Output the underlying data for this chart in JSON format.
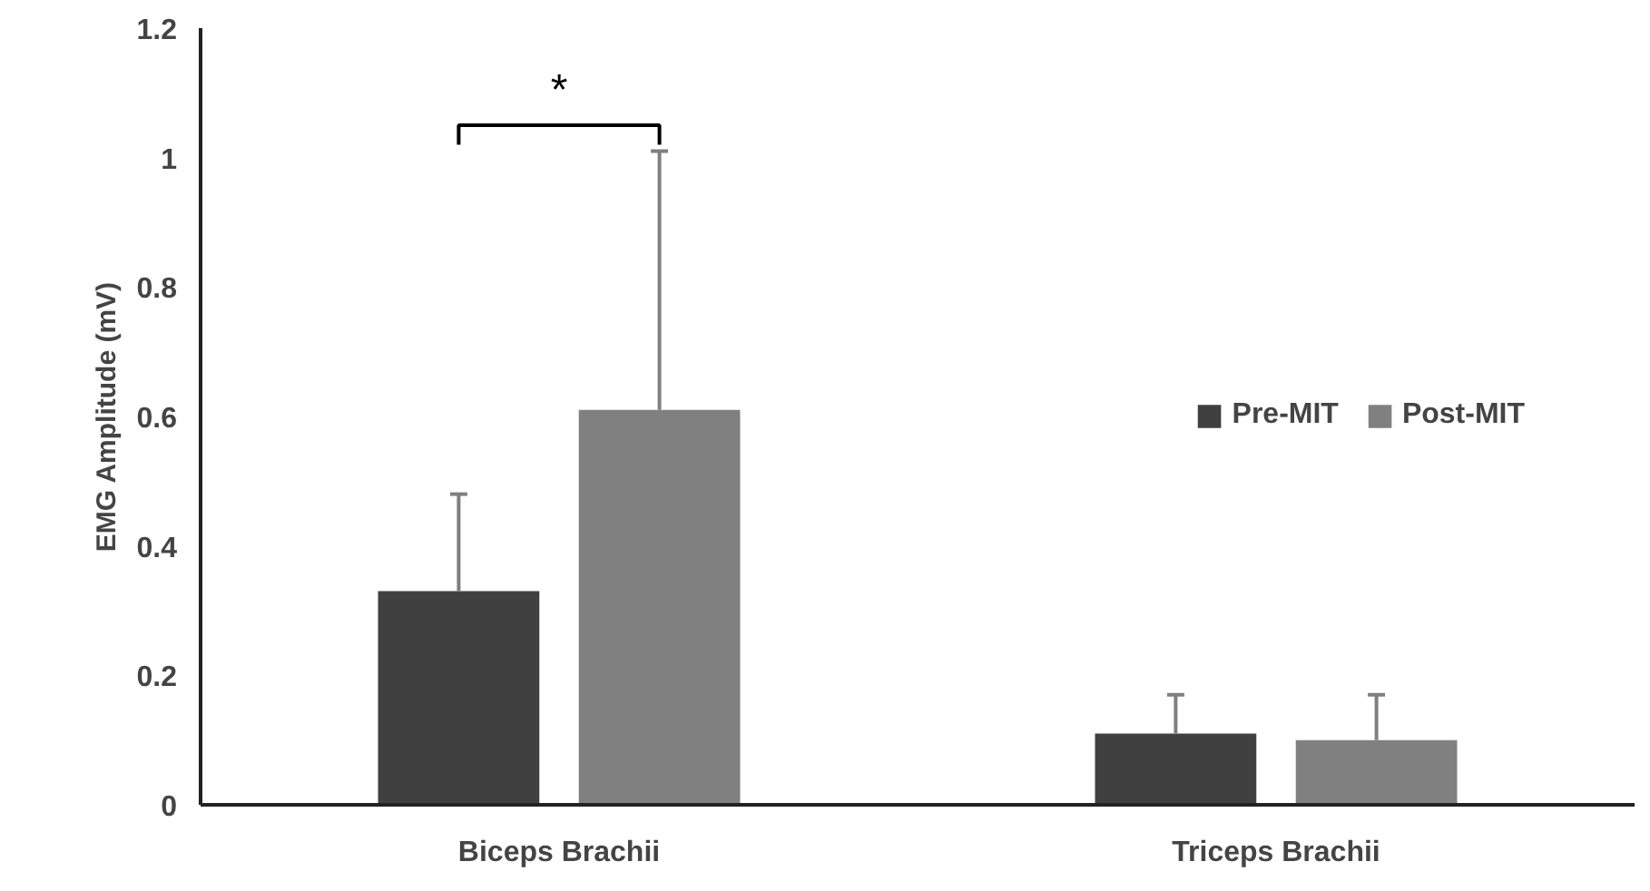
{
  "chart_data": {
    "type": "bar",
    "ylabel": "EMG Amplitude (mV)",
    "categories": [
      "Biceps Brachii",
      "Triceps Brachii"
    ],
    "series": [
      {
        "name": "Pre-MIT",
        "color": "#404040",
        "values": [
          0.33,
          0.11
        ],
        "errors": [
          [
            0.33,
            0.48
          ],
          [
            0.11,
            0.17
          ]
        ]
      },
      {
        "name": "Post-MIT",
        "color": "#808080",
        "values": [
          0.61,
          0.1
        ],
        "errors": [
          [
            0.61,
            1.01
          ],
          [
            0.1,
            0.17
          ]
        ]
      }
    ],
    "ylim": [
      0,
      1.2
    ],
    "yticks": [
      0,
      0.2,
      0.4,
      0.6,
      0.8,
      1,
      1.2
    ],
    "grid": false,
    "legend": "right",
    "annotations": [
      "*"
    ]
  }
}
